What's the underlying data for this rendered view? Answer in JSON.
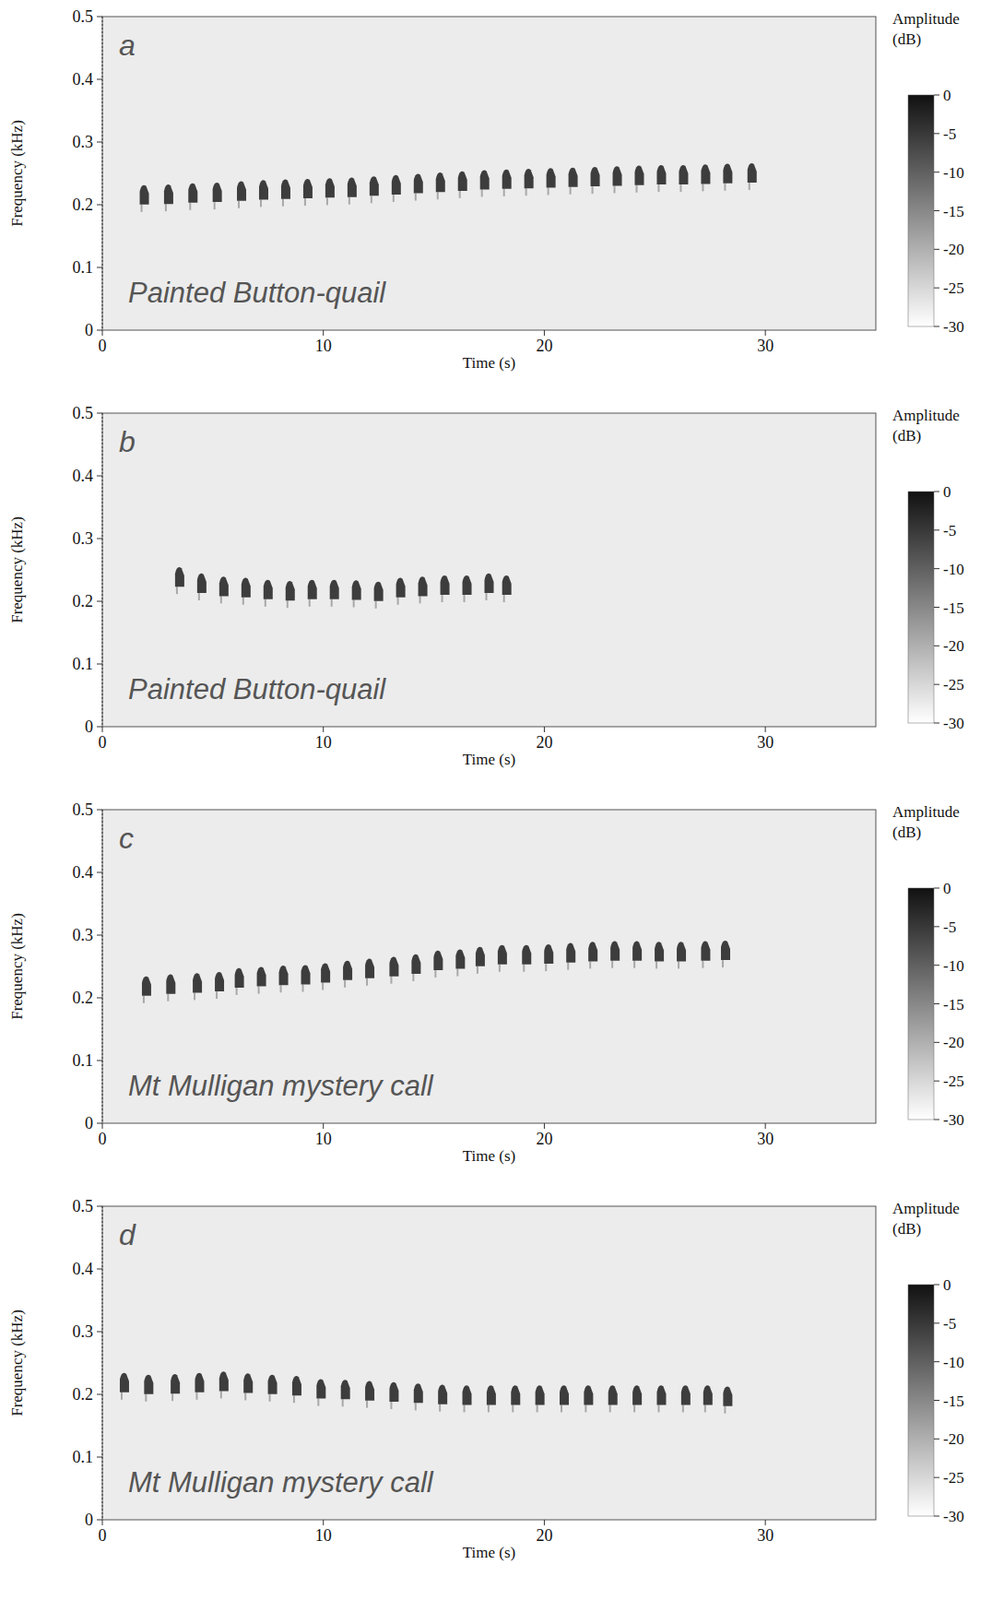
{
  "chart_data": [
    {
      "type": "scatter",
      "panel_label": "a",
      "title": "Painted Button-quail",
      "x_label": "Time (s)",
      "y_label": "Frequency (kHz)",
      "x": [
        1.9,
        3.0,
        4.1,
        5.2,
        6.3,
        7.3,
        8.3,
        9.3,
        10.3,
        11.3,
        12.3,
        13.3,
        14.3,
        15.3,
        16.3,
        17.3,
        18.3,
        19.3,
        20.3,
        21.3,
        22.3,
        23.3,
        24.3,
        25.3,
        26.3,
        27.3,
        28.3,
        29.4
      ],
      "values": [
        0.212,
        0.213,
        0.215,
        0.216,
        0.218,
        0.22,
        0.221,
        0.222,
        0.223,
        0.224,
        0.226,
        0.228,
        0.23,
        0.232,
        0.234,
        0.236,
        0.237,
        0.238,
        0.239,
        0.24,
        0.241,
        0.242,
        0.243,
        0.244,
        0.244,
        0.245,
        0.246,
        0.247
      ],
      "xlim": [
        0,
        35
      ],
      "xticks": [
        0,
        10,
        20,
        30
      ],
      "ylim": [
        0,
        0.5
      ],
      "yticks": [
        0,
        0.1,
        0.2,
        0.3,
        0.4,
        0.5
      ],
      "marker": "note",
      "color": "#2a2a2a",
      "colorbar": {
        "title": "Amplitude (dB)",
        "range": [
          -30,
          0
        ],
        "ticks": [
          0,
          -5,
          -10,
          -15,
          -20,
          -25,
          -30
        ]
      }
    },
    {
      "type": "scatter",
      "panel_label": "b",
      "title": "Painted Button-quail",
      "x_label": "Time (s)",
      "y_label": "Frequency (kHz)",
      "x": [
        3.5,
        4.5,
        5.5,
        6.5,
        7.5,
        8.5,
        9.5,
        10.5,
        11.5,
        12.5,
        13.5,
        14.5,
        15.5,
        16.5,
        17.5,
        18.3
      ],
      "values": [
        0.235,
        0.225,
        0.22,
        0.218,
        0.215,
        0.213,
        0.215,
        0.215,
        0.214,
        0.212,
        0.218,
        0.22,
        0.222,
        0.222,
        0.225,
        0.222
      ],
      "xlim": [
        0,
        35
      ],
      "xticks": [
        0,
        10,
        20,
        30
      ],
      "ylim": [
        0,
        0.5
      ],
      "yticks": [
        0,
        0.1,
        0.2,
        0.3,
        0.4,
        0.5
      ],
      "marker": "note",
      "color": "#2a2a2a",
      "colorbar": {
        "title": "Amplitude (dB)",
        "range": [
          -30,
          0
        ],
        "ticks": [
          0,
          -5,
          -10,
          -15,
          -20,
          -25,
          -30
        ]
      }
    },
    {
      "type": "scatter",
      "panel_label": "c",
      "title": "Mt Mulligan mystery call",
      "x_label": "Time (s)",
      "y_label": "Frequency (kHz)",
      "x": [
        2.0,
        3.1,
        4.3,
        5.3,
        6.2,
        7.2,
        8.2,
        9.2,
        10.1,
        11.1,
        12.1,
        13.2,
        14.2,
        15.2,
        16.2,
        17.1,
        18.1,
        19.2,
        20.2,
        21.2,
        22.2,
        23.2,
        24.2,
        25.2,
        26.2,
        27.3,
        28.2
      ],
      "values": [
        0.215,
        0.218,
        0.22,
        0.222,
        0.228,
        0.23,
        0.232,
        0.233,
        0.236,
        0.24,
        0.243,
        0.246,
        0.25,
        0.256,
        0.258,
        0.262,
        0.265,
        0.265,
        0.266,
        0.268,
        0.27,
        0.271,
        0.271,
        0.27,
        0.27,
        0.271,
        0.272
      ],
      "xlim": [
        0,
        35
      ],
      "xticks": [
        0,
        10,
        20,
        30
      ],
      "ylim": [
        0,
        0.5
      ],
      "yticks": [
        0,
        0.1,
        0.2,
        0.3,
        0.4,
        0.5
      ],
      "marker": "note",
      "color": "#2a2a2a",
      "colorbar": {
        "title": "Amplitude (dB)",
        "range": [
          -30,
          0
        ],
        "ticks": [
          0,
          -5,
          -10,
          -15,
          -20,
          -25,
          -30
        ]
      }
    },
    {
      "type": "scatter",
      "panel_label": "d",
      "title": "Mt Mulligan mystery call",
      "x_label": "Time (s)",
      "y_label": "Frequency (kHz)",
      "x": [
        1.0,
        2.1,
        3.3,
        4.4,
        5.5,
        6.6,
        7.7,
        8.8,
        9.9,
        11.0,
        12.1,
        13.2,
        14.3,
        15.4,
        16.5,
        17.6,
        18.7,
        19.8,
        20.9,
        22.0,
        23.1,
        24.2,
        25.3,
        26.4,
        27.4,
        28.3
      ],
      "values": [
        0.215,
        0.212,
        0.213,
        0.215,
        0.217,
        0.214,
        0.212,
        0.21,
        0.205,
        0.204,
        0.202,
        0.2,
        0.198,
        0.196,
        0.195,
        0.195,
        0.195,
        0.195,
        0.195,
        0.195,
        0.195,
        0.195,
        0.195,
        0.195,
        0.195,
        0.193
      ],
      "xlim": [
        0,
        35
      ],
      "xticks": [
        0,
        10,
        20,
        30
      ],
      "ylim": [
        0,
        0.5
      ],
      "yticks": [
        0,
        0.1,
        0.2,
        0.3,
        0.4,
        0.5
      ],
      "marker": "note",
      "color": "#2a2a2a",
      "colorbar": {
        "title": "Amplitude (dB)",
        "range": [
          -30,
          0
        ],
        "ticks": [
          0,
          -5,
          -10,
          -15,
          -20,
          -25,
          -30
        ]
      }
    }
  ]
}
